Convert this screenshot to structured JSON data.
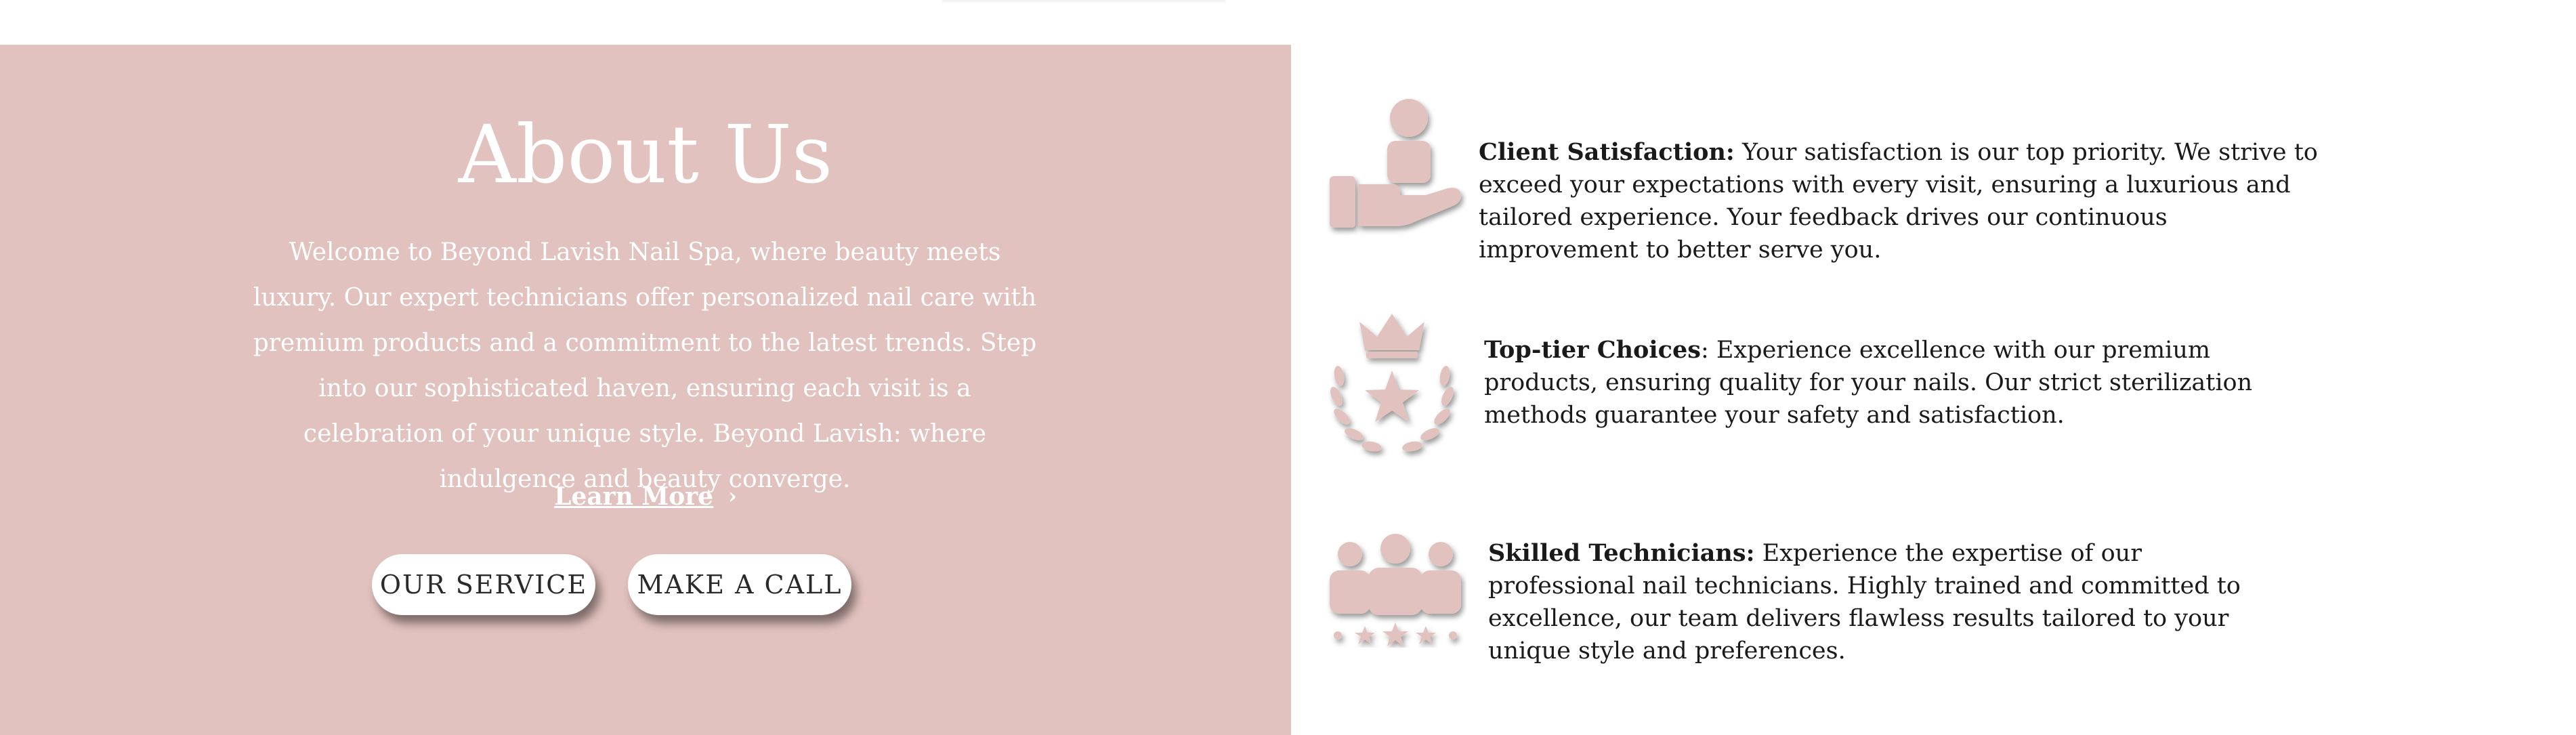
{
  "colors": {
    "panel_bg": "#e2c2be",
    "icon_fill": "#e2c2be",
    "text_white": "#ffffff",
    "text_dark": "#1a1a1a"
  },
  "about": {
    "title": "About Us",
    "description": "Welcome to Beyond Lavish Nail Spa, where beauty meets luxury. Our expert technicians offer personalized nail care with premium products and a commitment to the latest trends. Step into our sophisticated haven, ensuring each visit is a celebration of your unique style. Beyond Lavish: where indulgence and beauty converge.",
    "learn_more_label": "Learn More",
    "learn_more_icon": "chevron-right-icon",
    "buttons": {
      "service_label": "OUR SERVICE",
      "call_label": "MAKE A CALL"
    }
  },
  "features": [
    {
      "icon": "hand-person-icon",
      "title": "Client Satisfaction:",
      "text": " Your satisfaction is our top priority. We strive to exceed your expectations with every visit, ensuring a luxurious and tailored experience. Your feedback drives our continuous improvement to better serve you."
    },
    {
      "icon": "crown-laurel-star-icon",
      "title": "Top-tier Choices",
      "text": ": Experience excellence with our premium products, ensuring quality for your nails. Our strict sterilization methods guarantee your safety and satisfaction."
    },
    {
      "icon": "team-stars-icon",
      "title": "Skilled Technicians:",
      "text": " Experience the expertise of our professional nail technicians. Highly trained and committed to excellence, our team delivers flawless results tailored to your unique style and preferences."
    }
  ]
}
